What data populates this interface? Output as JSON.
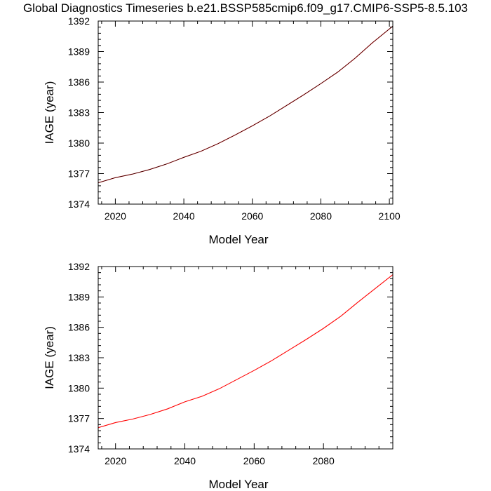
{
  "title": "Global Diagnostics Timeseries b.e21.BSSP585cmip6.f09_g17.CMIP6-SSP5-8.5.103",
  "chart_data": [
    {
      "type": "line",
      "xlabel": "Model Year",
      "ylabel": "IAGE (year)",
      "xlim": [
        2015,
        2101
      ],
      "ylim": [
        1374,
        1392
      ],
      "xticks": [
        2020,
        2040,
        2060,
        2080,
        2100
      ],
      "yticks": [
        1374,
        1377,
        1380,
        1383,
        1386,
        1389,
        1392
      ],
      "series": [
        {
          "color": "#e00000",
          "x": [
            2015,
            2020,
            2025,
            2030,
            2035,
            2040,
            2045,
            2050,
            2055,
            2060,
            2065,
            2070,
            2075,
            2080,
            2085,
            2090,
            2095,
            2101
          ],
          "y": [
            1376.1,
            1376.6,
            1376.95,
            1377.4,
            1377.95,
            1378.6,
            1379.2,
            1379.95,
            1380.8,
            1381.7,
            1382.65,
            1383.7,
            1384.75,
            1385.85,
            1387.0,
            1388.35,
            1389.85,
            1391.5
          ]
        },
        {
          "color": "#000000",
          "x": [
            2015,
            2020,
            2025,
            2030,
            2035,
            2040,
            2045,
            2050,
            2055,
            2060,
            2065,
            2070,
            2075,
            2080,
            2085,
            2090,
            2095,
            2101
          ],
          "y": [
            1376.1,
            1376.6,
            1376.95,
            1377.4,
            1377.95,
            1378.6,
            1379.2,
            1379.95,
            1380.8,
            1381.7,
            1382.65,
            1383.7,
            1384.75,
            1385.85,
            1387.0,
            1388.35,
            1389.85,
            1391.5
          ]
        }
      ]
    },
    {
      "type": "line",
      "xlabel": "Model Year",
      "ylabel": "IAGE (year)",
      "xlim": [
        2015,
        2100
      ],
      "ylim": [
        1374,
        1392
      ],
      "xticks": [
        2020,
        2040,
        2060,
        2080
      ],
      "yticks": [
        1374,
        1377,
        1380,
        1383,
        1386,
        1389,
        1392
      ],
      "series": [
        {
          "color": "#ff0000",
          "x": [
            2015,
            2020,
            2025,
            2030,
            2035,
            2040,
            2045,
            2050,
            2055,
            2060,
            2065,
            2070,
            2075,
            2080,
            2085,
            2090,
            2095,
            2100
          ],
          "y": [
            1376.1,
            1376.6,
            1376.95,
            1377.4,
            1377.95,
            1378.65,
            1379.2,
            1379.95,
            1380.85,
            1381.75,
            1382.7,
            1383.75,
            1384.8,
            1385.9,
            1387.1,
            1388.5,
            1389.85,
            1391.2
          ]
        }
      ]
    }
  ]
}
